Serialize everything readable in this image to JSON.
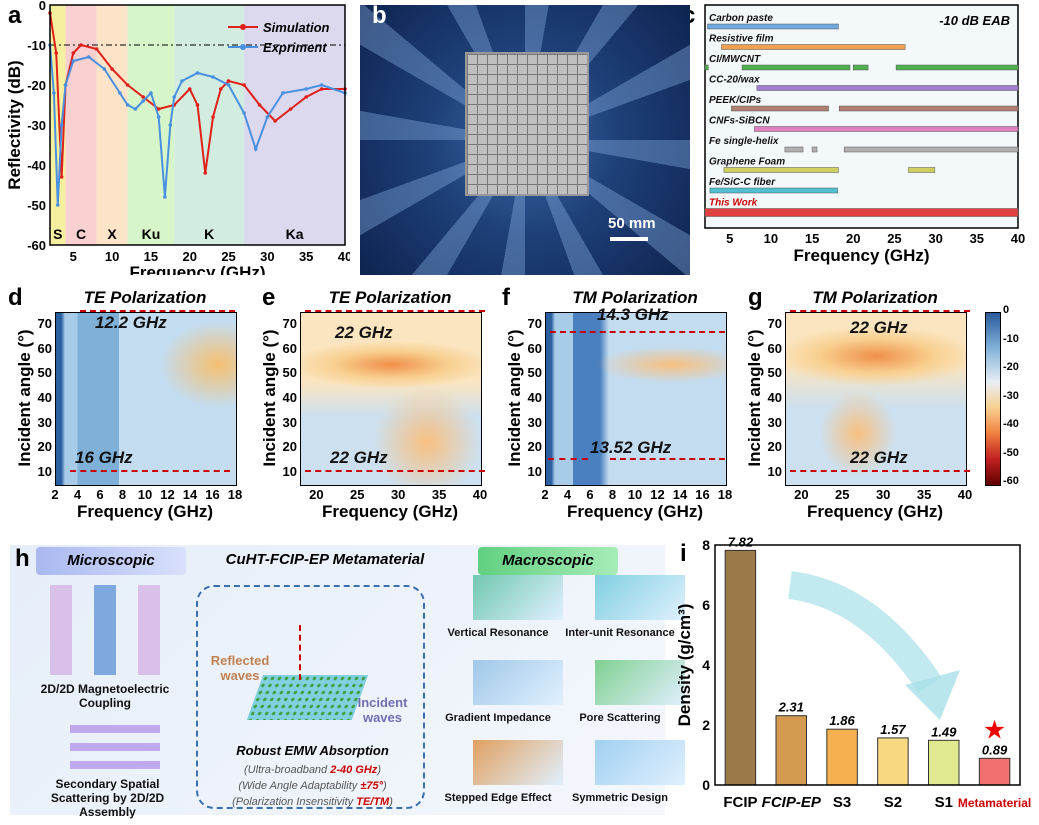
{
  "panels": {
    "a": "a",
    "b": "b",
    "c": "c",
    "d": "d",
    "e": "e",
    "f": "f",
    "g": "g",
    "h": "h",
    "i": "i"
  },
  "chart_data": [
    {
      "id": "a",
      "type": "line",
      "xlabel": "Frequency (GHz)",
      "ylabel": "Reflectivity (dB)",
      "xlim": [
        2,
        40
      ],
      "ylim": [
        -60,
        0
      ],
      "xticks": [
        5,
        10,
        15,
        20,
        25,
        30,
        35,
        40
      ],
      "yticks": [
        0,
        -10,
        -20,
        -30,
        -40,
        -50,
        -60
      ],
      "reference_line": -10,
      "bands": [
        {
          "name": "S",
          "range": [
            2,
            4
          ],
          "color": "#f5f0a0"
        },
        {
          "name": "C",
          "range": [
            4,
            8
          ],
          "color": "#f9d0d0"
        },
        {
          "name": "X",
          "range": [
            8,
            12
          ],
          "color": "#fde3c8"
        },
        {
          "name": "Ku",
          "range": [
            12,
            18
          ],
          "color": "#d6f5c8"
        },
        {
          "name": "K",
          "range": [
            18,
            27
          ],
          "color": "#d2ece0"
        },
        {
          "name": "Ka",
          "range": [
            27,
            40
          ],
          "color": "#dcd8ee"
        }
      ],
      "series": [
        {
          "name": "Simulation",
          "color": "#e0201a",
          "x": [
            2,
            2.8,
            3.5,
            4,
            5,
            6,
            8,
            10,
            12,
            14,
            16,
            18,
            20,
            21,
            22,
            23,
            24,
            25,
            27,
            29,
            31,
            33,
            35,
            37,
            40
          ],
          "y": [
            -2,
            -12,
            -43,
            -20,
            -12,
            -10,
            -11,
            -16,
            -20,
            -23,
            -26,
            -25,
            -21,
            -25,
            -42,
            -28,
            -21,
            -19,
            -20,
            -25,
            -29,
            -26,
            -23,
            -21,
            -21
          ]
        },
        {
          "name": "Expriment",
          "color": "#4a90e0",
          "x": [
            2,
            2.5,
            3,
            3.5,
            4,
            5,
            7,
            9,
            11,
            12,
            13,
            14,
            15,
            16,
            16.8,
            17.5,
            18,
            19,
            21,
            23,
            25,
            27,
            28.5,
            30,
            32,
            35,
            37,
            40
          ],
          "y": [
            -10,
            -22,
            -50,
            -30,
            -20,
            -14,
            -13,
            -16,
            -22,
            -25,
            -26,
            -24,
            -22,
            -28,
            -48,
            -30,
            -23,
            -19,
            -17,
            -18,
            -20,
            -27,
            -36,
            -28,
            -22,
            -21,
            -20,
            -22
          ]
        }
      ]
    },
    {
      "id": "c",
      "type": "bar",
      "title": "-10 dB EAB",
      "xlabel": "Frequency (GHz)",
      "xlim": [
        2,
        40
      ],
      "xticks": [
        5,
        10,
        15,
        20,
        25,
        30,
        35,
        40
      ],
      "series": [
        {
          "name": "Carbon paste",
          "color": "#6fa8dc",
          "ranges": [
            [
              2.3,
              18.2
            ]
          ]
        },
        {
          "name": "Resistive film",
          "color": "#f0a050",
          "ranges": [
            [
              4,
              26.3
            ]
          ]
        },
        {
          "name": "CI/MWCNT",
          "color": "#50b050",
          "ranges": [
            [
              2,
              2.4
            ],
            [
              6.5,
              19.6
            ],
            [
              20,
              21.8
            ],
            [
              25.2,
              40
            ]
          ]
        },
        {
          "name": "CC-20/wax",
          "color": "#a080d0",
          "ranges": [
            [
              8.3,
              40
            ]
          ]
        },
        {
          "name": "PEEK/CIPs",
          "color": "#b08070",
          "ranges": [
            [
              5.2,
              17
            ],
            [
              18.3,
              40
            ]
          ]
        },
        {
          "name": "CNFs-SiBCN",
          "color": "#e080c0",
          "ranges": [
            [
              8,
              40
            ]
          ]
        },
        {
          "name": "Fe single-helix",
          "color": "#b0b0b0",
          "ranges": [
            [
              11.7,
              13.9
            ],
            [
              15,
              15.6
            ],
            [
              18.9,
              40
            ]
          ]
        },
        {
          "name": "Graphene Foam",
          "color": "#d0d060",
          "ranges": [
            [
              4.3,
              18.2
            ],
            [
              26.7,
              29.9
            ]
          ]
        },
        {
          "name": "Fe/SiC-C fiber",
          "color": "#50c0d0",
          "ranges": [
            [
              2.6,
              18.1
            ]
          ]
        },
        {
          "name": "This Work",
          "color": "#e04040",
          "ranges": [
            [
              2,
              40
            ]
          ]
        }
      ]
    },
    {
      "id": "d",
      "type": "heatmap",
      "title": "TE Polarization",
      "xlabel": "Frequency (GHz)",
      "ylabel": "Incident angle (°)",
      "xlim": [
        2,
        18
      ],
      "ylim": [
        5,
        75
      ],
      "xticks": [
        2,
        4,
        6,
        8,
        10,
        12,
        14,
        16,
        18
      ],
      "yticks": [
        10,
        20,
        30,
        40,
        50,
        60,
        70
      ],
      "annotations": [
        "12.2 GHz",
        "16 GHz"
      ]
    },
    {
      "id": "e",
      "type": "heatmap",
      "title": "TE Polarization",
      "xlabel": "Frequency (GHz)",
      "ylabel": "Incident angle (°)",
      "xlim": [
        18,
        40
      ],
      "ylim": [
        5,
        75
      ],
      "xticks": [
        20,
        25,
        30,
        35,
        40
      ],
      "yticks": [
        10,
        20,
        30,
        40,
        50,
        60,
        70
      ],
      "annotations": [
        "22 GHz",
        "22 GHz"
      ]
    },
    {
      "id": "f",
      "type": "heatmap",
      "title": "TM Polarization",
      "xlabel": "Frequency (GHz)",
      "ylabel": "Incident angle (°)",
      "xlim": [
        2,
        18
      ],
      "ylim": [
        5,
        75
      ],
      "xticks": [
        2,
        4,
        6,
        8,
        10,
        12,
        14,
        16,
        18
      ],
      "yticks": [
        10,
        20,
        30,
        40,
        50,
        60,
        70
      ],
      "annotations": [
        "14.3 GHz",
        "13.52 GHz"
      ]
    },
    {
      "id": "g",
      "type": "heatmap",
      "title": "TM Polarization",
      "xlabel": "Frequency (GHz)",
      "ylabel": "Incident angle (°)",
      "xlim": [
        18,
        40
      ],
      "ylim": [
        5,
        75
      ],
      "xticks": [
        20,
        25,
        30,
        35,
        40
      ],
      "yticks": [
        10,
        20,
        30,
        40,
        50,
        60,
        70
      ],
      "annotations": [
        "22 GHz",
        "22 GHz"
      ],
      "colorbar": {
        "ticks": [
          0,
          -10,
          -20,
          -30,
          -40,
          -50,
          -60
        ]
      }
    },
    {
      "id": "i",
      "type": "bar",
      "ylabel": "Density (g/cm³)",
      "ylim": [
        0,
        8
      ],
      "yticks": [
        0,
        2,
        4,
        6,
        8
      ],
      "categories": [
        "FCIP",
        "FCIP-EP",
        "S3",
        "S2",
        "S1",
        "Metamaterial"
      ],
      "values": [
        7.82,
        2.31,
        1.86,
        1.57,
        1.49,
        0.89
      ],
      "labels": [
        "7.82",
        "2.31",
        "1.86",
        "1.57",
        "1.49",
        "0.89"
      ],
      "colors": [
        "#9b7a4a",
        "#d49a50",
        "#f5b050",
        "#f8d880",
        "#e0e890",
        "#f07070"
      ]
    }
  ],
  "b": {
    "scale": "50 mm"
  },
  "h": {
    "micro": "Microscopic",
    "title": "CuHT-FCIP-EP Metamaterial",
    "macro": "Macroscopic",
    "coupling": "2D/2D Magnetoelectric Coupling",
    "scattering": "Secondary Spatial Scattering by 2D/2D Assembly",
    "reflected": "Reflected waves",
    "incident": "Incident waves",
    "robust": "Robust EMW Absorption",
    "l1a": "(Ultra-broadband ",
    "l1b": "2-40 GHz",
    "l1c": ")",
    "l2a": "(Wide Angle Adaptability ",
    "l2b": "±75°",
    "l2c": ")",
    "l3a": "(Polarization Insensitivity ",
    "l3b": "TE/TM",
    "l3c": ")",
    "mech": [
      "Vertical Resonance",
      "Inter-unit Resonance",
      "Gradient Impedance",
      "Pore Scattering",
      "Stepped Edge Effect",
      "Symmetric Design"
    ]
  }
}
